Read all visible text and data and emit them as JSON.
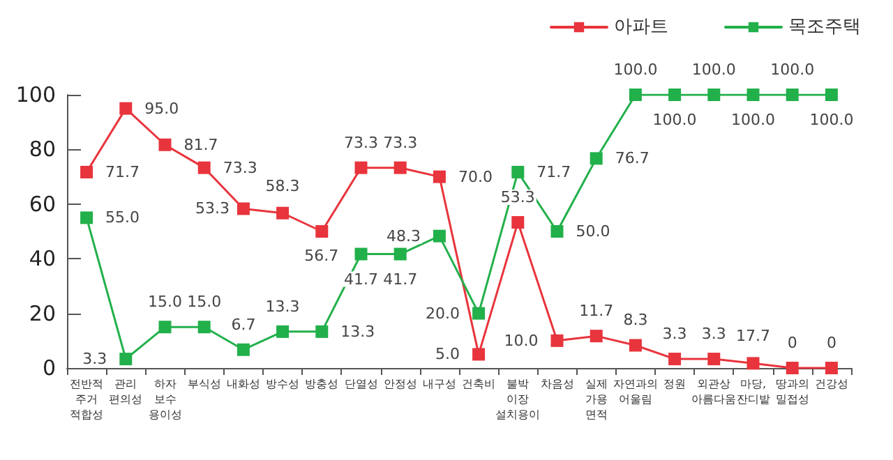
{
  "chart_data": {
    "type": "line",
    "categories": [
      "전반적\n주거\n적합성",
      "관리\n편의성",
      "하자\n보수\n용이성",
      "부식성",
      "내화성",
      "방수성",
      "방충성",
      "단열성",
      "안정성",
      "내구성",
      "건축비",
      "불박\n이장\n설치용이",
      "차음성",
      "실제\n가용\n면적",
      "자연과의\n어울림",
      "정원",
      "외관상\n아름다움",
      "마당,\n잔디밭",
      "땅과의\n밀접성",
      "건강성"
    ],
    "series": [
      {
        "name": "아파트",
        "color": "#e8343c",
        "values": [
          71.7,
          95.0,
          81.7,
          73.3,
          58.3,
          56.7,
          50.0,
          73.3,
          73.3,
          70.0,
          5.0,
          53.3,
          10.0,
          11.7,
          8.3,
          3.3,
          3.3,
          1.7,
          0,
          0
        ],
        "value_labels": [
          "71.7",
          "95.0",
          "81.7",
          "73.3",
          null,
          null,
          null,
          "73.3",
          "73.3",
          "70.0",
          "5.0",
          "53.3",
          "10.0",
          "11.7",
          "8.3",
          "3.3",
          "3.3",
          null,
          "0",
          "0"
        ]
      },
      {
        "name": "목조주택",
        "color": "#22b04b",
        "values": [
          55.0,
          3.3,
          15.0,
          15.0,
          6.7,
          13.3,
          13.3,
          41.7,
          41.7,
          48.3,
          20.0,
          71.7,
          50.0,
          76.7,
          100,
          100,
          100,
          100,
          100,
          100
        ],
        "value_labels": [
          "55.0",
          "3.3",
          "15.0",
          "15.0",
          "6.7",
          "13.3",
          "13.3",
          "41.7",
          "41.7",
          "48.3",
          "20.0",
          "71.7",
          "50.0",
          "76.7",
          "100.0",
          "100.0",
          "100.0",
          "100.0",
          "100.0",
          "100.0"
        ]
      }
    ],
    "annotations": [
      {
        "text": "53.3",
        "x": "내화성",
        "y": 58.3
      },
      {
        "text": "58.3",
        "x": "방수성",
        "y": 56.7
      },
      {
        "text": "56.7",
        "x": "방충성",
        "y": 50.0
      },
      {
        "text": "17.7",
        "x": "마당,\n잔디밭",
        "y": 1.7
      }
    ],
    "ylim": [
      0,
      100
    ],
    "yticks": [
      0,
      20,
      40,
      60,
      80,
      100
    ],
    "grid": false,
    "legend": "top right",
    "marker": "square",
    "line_style": "solid"
  }
}
